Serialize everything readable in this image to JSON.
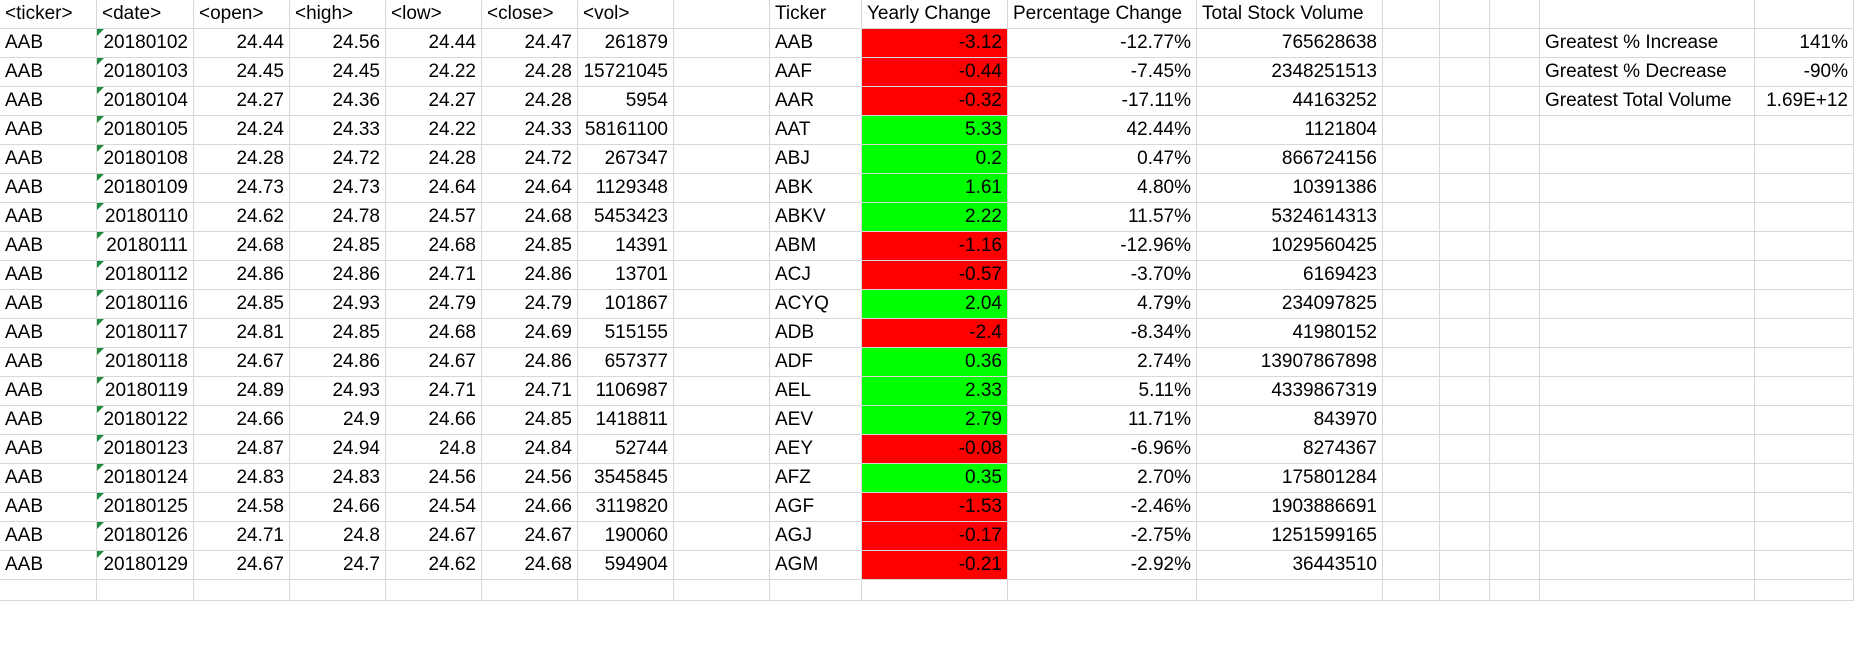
{
  "colors": {
    "negative": "#ff0000",
    "positive": "#00ff00",
    "grid": "#d8d8d8",
    "error_marker": "#1e8a3c"
  },
  "raw": {
    "headers": [
      "<ticker>",
      "<date>",
      "<open>",
      "<high>",
      "<low>",
      "<close>",
      "<vol>"
    ],
    "rows": [
      [
        "AAB",
        "20180102",
        "24.44",
        "24.56",
        "24.44",
        "24.47",
        "261879"
      ],
      [
        "AAB",
        "20180103",
        "24.45",
        "24.45",
        "24.22",
        "24.28",
        "15721045"
      ],
      [
        "AAB",
        "20180104",
        "24.27",
        "24.36",
        "24.27",
        "24.28",
        "5954"
      ],
      [
        "AAB",
        "20180105",
        "24.24",
        "24.33",
        "24.22",
        "24.33",
        "58161100"
      ],
      [
        "AAB",
        "20180108",
        "24.28",
        "24.72",
        "24.28",
        "24.72",
        "267347"
      ],
      [
        "AAB",
        "20180109",
        "24.73",
        "24.73",
        "24.64",
        "24.64",
        "1129348"
      ],
      [
        "AAB",
        "20180110",
        "24.62",
        "24.78",
        "24.57",
        "24.68",
        "5453423"
      ],
      [
        "AAB",
        "20180111",
        "24.68",
        "24.85",
        "24.68",
        "24.85",
        "14391"
      ],
      [
        "AAB",
        "20180112",
        "24.86",
        "24.86",
        "24.71",
        "24.86",
        "13701"
      ],
      [
        "AAB",
        "20180116",
        "24.85",
        "24.93",
        "24.79",
        "24.79",
        "101867"
      ],
      [
        "AAB",
        "20180117",
        "24.81",
        "24.85",
        "24.68",
        "24.69",
        "515155"
      ],
      [
        "AAB",
        "20180118",
        "24.67",
        "24.86",
        "24.67",
        "24.86",
        "657377"
      ],
      [
        "AAB",
        "20180119",
        "24.89",
        "24.93",
        "24.71",
        "24.71",
        "1106987"
      ],
      [
        "AAB",
        "20180122",
        "24.66",
        "24.9",
        "24.66",
        "24.85",
        "1418811"
      ],
      [
        "AAB",
        "20180123",
        "24.87",
        "24.94",
        "24.8",
        "24.84",
        "52744"
      ],
      [
        "AAB",
        "20180124",
        "24.83",
        "24.83",
        "24.56",
        "24.56",
        "3545845"
      ],
      [
        "AAB",
        "20180125",
        "24.58",
        "24.66",
        "24.54",
        "24.66",
        "3119820"
      ],
      [
        "AAB",
        "20180126",
        "24.71",
        "24.8",
        "24.67",
        "24.67",
        "190060"
      ],
      [
        "AAB",
        "20180129",
        "24.67",
        "24.7",
        "24.62",
        "24.68",
        "594904"
      ]
    ]
  },
  "summary": {
    "headers": [
      "Ticker",
      "Yearly Change",
      "Percentage Change",
      "Total Stock Volume"
    ],
    "rows": [
      {
        "ticker": "AAB",
        "change": "-3.12",
        "status": "neg",
        "pct": "-12.77%",
        "vol": "765628638"
      },
      {
        "ticker": "AAF",
        "change": "-0.44",
        "status": "neg",
        "pct": "-7.45%",
        "vol": "2348251513"
      },
      {
        "ticker": "AAR",
        "change": "-0.32",
        "status": "neg",
        "pct": "-17.11%",
        "vol": "44163252"
      },
      {
        "ticker": "AAT",
        "change": "5.33",
        "status": "pos",
        "pct": "42.44%",
        "vol": "1121804"
      },
      {
        "ticker": "ABJ",
        "change": "0.2",
        "status": "pos",
        "pct": "0.47%",
        "vol": "866724156"
      },
      {
        "ticker": "ABK",
        "change": "1.61",
        "status": "pos",
        "pct": "4.80%",
        "vol": "10391386"
      },
      {
        "ticker": "ABKV",
        "change": "2.22",
        "status": "pos",
        "pct": "11.57%",
        "vol": "5324614313"
      },
      {
        "ticker": "ABM",
        "change": "-1.16",
        "status": "neg",
        "pct": "-12.96%",
        "vol": "1029560425"
      },
      {
        "ticker": "ACJ",
        "change": "-0.57",
        "status": "neg",
        "pct": "-3.70%",
        "vol": "6169423"
      },
      {
        "ticker": "ACYQ",
        "change": "2.04",
        "status": "pos",
        "pct": "4.79%",
        "vol": "234097825"
      },
      {
        "ticker": "ADB",
        "change": "-2.4",
        "status": "neg",
        "pct": "-8.34%",
        "vol": "41980152"
      },
      {
        "ticker": "ADF",
        "change": "0.36",
        "status": "pos",
        "pct": "2.74%",
        "vol": "13907867898"
      },
      {
        "ticker": "AEL",
        "change": "2.33",
        "status": "pos",
        "pct": "5.11%",
        "vol": "4339867319"
      },
      {
        "ticker": "AEV",
        "change": "2.79",
        "status": "pos",
        "pct": "11.71%",
        "vol": "843970"
      },
      {
        "ticker": "AEY",
        "change": "-0.08",
        "status": "neg",
        "pct": "-6.96%",
        "vol": "8274367"
      },
      {
        "ticker": "AFZ",
        "change": "0.35",
        "status": "pos",
        "pct": "2.70%",
        "vol": "175801284"
      },
      {
        "ticker": "AGF",
        "change": "-1.53",
        "status": "neg",
        "pct": "-2.46%",
        "vol": "1903886691"
      },
      {
        "ticker": "AGJ",
        "change": "-0.17",
        "status": "neg",
        "pct": "-2.75%",
        "vol": "1251599165"
      },
      {
        "ticker": "AGM",
        "change": "-0.21",
        "status": "neg",
        "pct": "-2.92%",
        "vol": "36443510"
      }
    ]
  },
  "greatest": [
    {
      "label": "Greatest % Increase",
      "value": "141%"
    },
    {
      "label": "Greatest % Decrease",
      "value": "-90%"
    },
    {
      "label": "Greatest Total Volume",
      "value": "1.69E+12"
    }
  ]
}
